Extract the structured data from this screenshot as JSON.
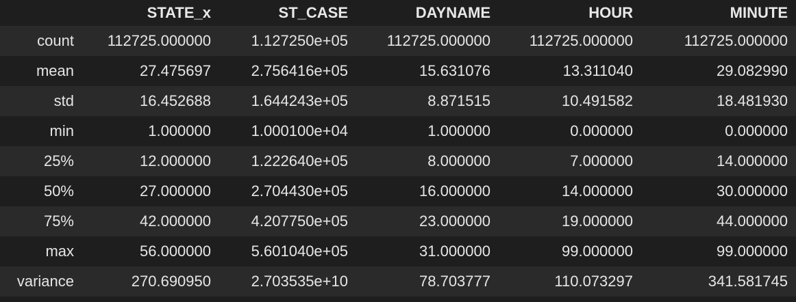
{
  "table": {
    "columns": [
      "",
      "STATE_x",
      "ST_CASE",
      "DAYNAME",
      "HOUR",
      "MINUTE"
    ],
    "rows": [
      {
        "index": "count",
        "values": [
          "112725.000000",
          "1.127250e+05",
          "112725.000000",
          "112725.000000",
          "112725.000000"
        ]
      },
      {
        "index": "mean",
        "values": [
          "27.475697",
          "2.756416e+05",
          "15.631076",
          "13.311040",
          "29.082990"
        ]
      },
      {
        "index": "std",
        "values": [
          "16.452688",
          "1.644243e+05",
          "8.871515",
          "10.491582",
          "18.481930"
        ]
      },
      {
        "index": "min",
        "values": [
          "1.000000",
          "1.000100e+04",
          "1.000000",
          "0.000000",
          "0.000000"
        ]
      },
      {
        "index": "25%",
        "values": [
          "12.000000",
          "1.222640e+05",
          "8.000000",
          "7.000000",
          "14.000000"
        ]
      },
      {
        "index": "50%",
        "values": [
          "27.000000",
          "2.704430e+05",
          "16.000000",
          "14.000000",
          "30.000000"
        ]
      },
      {
        "index": "75%",
        "values": [
          "42.000000",
          "4.207750e+05",
          "23.000000",
          "19.000000",
          "44.000000"
        ]
      },
      {
        "index": "max",
        "values": [
          "56.000000",
          "5.601040e+05",
          "31.000000",
          "99.000000",
          "99.000000"
        ]
      },
      {
        "index": "variance",
        "values": [
          "270.690950",
          "2.703535e+10",
          "78.703777",
          "110.073297",
          "341.581745"
        ]
      }
    ]
  },
  "colors": {
    "background": "#1e1e1e",
    "row_alt": "#2a2a2a",
    "text": "#e6e6e6"
  }
}
